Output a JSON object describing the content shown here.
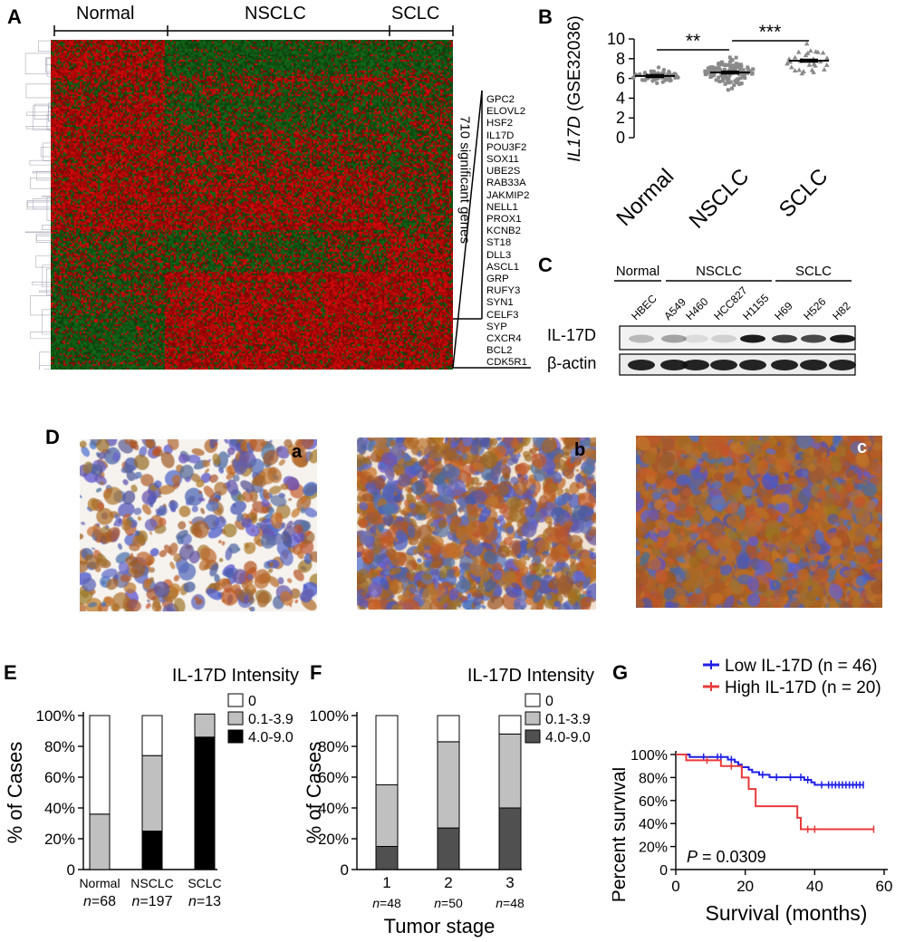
{
  "figure": {
    "panels": {
      "A": {
        "letter": "A",
        "groups": [
          "Normal",
          "NSCLC",
          "SCLC"
        ],
        "bracket_label": "710 significant genes",
        "genes": [
          "GPC2",
          "ELOVL2",
          "HSF2",
          "IL17D",
          "POU3F2",
          "SOX11",
          "UBE2S",
          "RAB33A",
          "JAKMIP2",
          "NELL1",
          "PROX1",
          "KCNB2",
          "ST18",
          "DLL3",
          "ASCL1",
          "GRP",
          "RUFY3",
          "SYN1",
          "CELF3",
          "SYP",
          "CXCR4",
          "BCL2",
          "CDK5R1"
        ]
      },
      "B": {
        "letter": "B"
      },
      "C": {
        "letter": "C",
        "groups": [
          "Normal",
          "NSCLC",
          "SCLC"
        ],
        "lanes": [
          "HBEC",
          "A549",
          "H460",
          "HCC827",
          "H1155",
          "H69",
          "H526",
          "H82"
        ],
        "rows": [
          "IL-17D",
          "β-actin"
        ]
      },
      "D": {
        "letter": "D",
        "subpanels": [
          "a",
          "b",
          "c"
        ]
      },
      "E": {
        "letter": "E"
      },
      "F": {
        "letter": "F"
      },
      "G": {
        "letter": "G"
      }
    }
  },
  "chart_data": [
    {
      "id": "B",
      "type": "scatter",
      "title": "",
      "ylabel_italic": "IL17D",
      "ylabel_rest": " (GSE32036)",
      "categories": [
        "Normal",
        "NSCLC",
        "SCLC"
      ],
      "ylim": [
        0,
        10
      ],
      "yticks": [
        0,
        2,
        4,
        6,
        8,
        10
      ],
      "means": [
        6.25,
        6.6,
        7.8
      ],
      "n_points": [
        60,
        110,
        30
      ],
      "spread": [
        0.35,
        0.65,
        0.7
      ],
      "significance": [
        "**",
        "***"
      ],
      "markers": [
        "circle",
        "square",
        "triangle"
      ]
    },
    {
      "id": "E",
      "type": "bar",
      "stacked": true,
      "title": "IL-17D Intensity",
      "ylabel": "% of Cases",
      "yticks": [
        "0",
        "20%",
        "40%",
        "60%",
        "80%",
        "100%"
      ],
      "categories": [
        "Normal",
        "NSCLC",
        "SCLC"
      ],
      "n_labels": [
        "=68",
        "=197",
        "=13"
      ],
      "series": [
        {
          "name": "4.0-9.0",
          "color": "#000000",
          "values": [
            0,
            25,
            86
          ]
        },
        {
          "name": "0.1-3.9",
          "color": "#c0c0c0",
          "values": [
            36,
            49,
            15
          ]
        },
        {
          "name": "0",
          "color": "#ffffff",
          "values": [
            64,
            26,
            0
          ]
        }
      ]
    },
    {
      "id": "F",
      "type": "bar",
      "stacked": true,
      "title": "IL-17D Intensity",
      "ylabel": "% of Cases",
      "xlabel": "Tumor stage",
      "yticks": [
        "0",
        "20%",
        "40%",
        "60%",
        "80%",
        "100%"
      ],
      "categories": [
        "1",
        "2",
        "3"
      ],
      "n_labels": [
        "=48",
        "=50",
        "=48"
      ],
      "series": [
        {
          "name": "4.0-9.0",
          "color": "#505050",
          "values": [
            15,
            27,
            40
          ]
        },
        {
          "name": "0.1-3.9",
          "color": "#c0c0c0",
          "values": [
            40,
            56,
            48
          ]
        },
        {
          "name": "0",
          "color": "#ffffff",
          "values": [
            45,
            17,
            12
          ]
        }
      ]
    },
    {
      "id": "G",
      "type": "line",
      "title": "",
      "ylabel": "Percent survival",
      "xlabel": "Survival (months)",
      "xlim": [
        0,
        60
      ],
      "ylim": [
        0,
        100
      ],
      "xticks": [
        "0",
        "20",
        "40",
        "60"
      ],
      "yticks": [
        "0",
        "20%",
        "40%",
        "60%",
        "80%",
        "100%"
      ],
      "pvalue_label": "P",
      "pvalue_text": " = 0.0309",
      "series": [
        {
          "name": "Low IL-17D (n = 46)",
          "color": "#1f1fe6",
          "steps": [
            [
              0,
              100
            ],
            [
              4,
              97.8
            ],
            [
              15,
              95.6
            ],
            [
              17,
              93.4
            ],
            [
              18,
              91.2
            ],
            [
              19,
              89
            ],
            [
              21,
              86.8
            ],
            [
              22,
              84.6
            ],
            [
              24,
              82.4
            ],
            [
              27,
              80.2
            ],
            [
              37,
              78
            ],
            [
              39,
              75.8
            ],
            [
              40,
              73.6
            ],
            [
              54,
              73.6
            ]
          ],
          "censored": [
            8,
            12,
            13,
            16,
            25,
            29,
            33,
            36,
            38,
            42,
            44,
            45,
            46,
            47,
            48,
            49,
            50,
            51,
            52,
            53,
            54
          ]
        },
        {
          "name": "High IL-17D (n = 20)",
          "color": "#e83a3a",
          "steps": [
            [
              0,
              100
            ],
            [
              3,
              95
            ],
            [
              13,
              90
            ],
            [
              19,
              80
            ],
            [
              21,
              70
            ],
            [
              23,
              55
            ],
            [
              35,
              45
            ],
            [
              36,
              35
            ],
            [
              57,
              35
            ]
          ],
          "censored": [
            9,
            16,
            38,
            40,
            57
          ]
        }
      ]
    }
  ]
}
